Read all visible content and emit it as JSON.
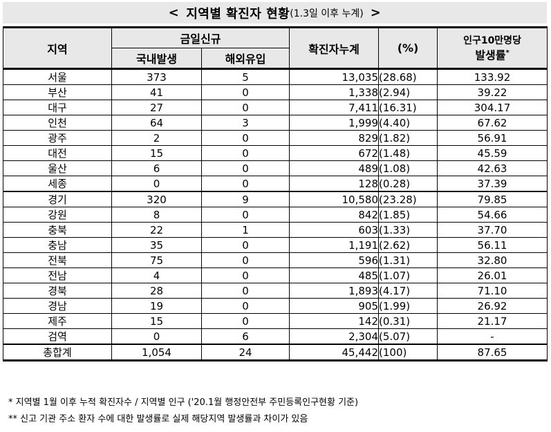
{
  "title": {
    "open": "<",
    "main": "지역별 확진자 현황",
    "sub": "(1.3일 이후 누계)",
    "close": ">"
  },
  "headers": {
    "region": "지역",
    "new_today": "금일신규",
    "domestic": "국내발생",
    "overseas": "해외유입",
    "cumulative": "확진자누계",
    "percent": "(%)",
    "rate_line1": "인구10만명당",
    "rate_line2": "발생률",
    "rate_mark": "*"
  },
  "rows": [
    {
      "region": "서울",
      "domestic": "373",
      "overseas": "5",
      "cumulative": "13,035",
      "percent": "(28.68)",
      "rate": "133.92"
    },
    {
      "region": "부산",
      "domestic": "41",
      "overseas": "0",
      "cumulative": "1,338",
      "percent": "(2.94)",
      "rate": "39.22"
    },
    {
      "region": "대구",
      "domestic": "27",
      "overseas": "0",
      "cumulative": "7,411",
      "percent": "(16.31)",
      "rate": "304.17"
    },
    {
      "region": "인천",
      "domestic": "64",
      "overseas": "3",
      "cumulative": "1,999",
      "percent": "(4.40)",
      "rate": "67.62"
    },
    {
      "region": "광주",
      "domestic": "2",
      "overseas": "0",
      "cumulative": "829",
      "percent": "(1.82)",
      "rate": "56.91"
    },
    {
      "region": "대전",
      "domestic": "15",
      "overseas": "0",
      "cumulative": "672",
      "percent": "(1.48)",
      "rate": "45.59"
    },
    {
      "region": "울산",
      "domestic": "6",
      "overseas": "0",
      "cumulative": "489",
      "percent": "(1.08)",
      "rate": "42.63"
    },
    {
      "region": "세종",
      "domestic": "0",
      "overseas": "0",
      "cumulative": "128",
      "percent": "(0.28)",
      "rate": "37.39"
    },
    {
      "region": "경기",
      "domestic": "320",
      "overseas": "9",
      "cumulative": "10,580",
      "percent": "(23.28)",
      "rate": "79.85"
    },
    {
      "region": "강원",
      "domestic": "8",
      "overseas": "0",
      "cumulative": "842",
      "percent": "(1.85)",
      "rate": "54.66"
    },
    {
      "region": "충북",
      "domestic": "22",
      "overseas": "1",
      "cumulative": "603",
      "percent": "(1.33)",
      "rate": "37.70"
    },
    {
      "region": "충남",
      "domestic": "35",
      "overseas": "0",
      "cumulative": "1,191",
      "percent": "(2.62)",
      "rate": "56.11"
    },
    {
      "region": "전북",
      "domestic": "75",
      "overseas": "0",
      "cumulative": "596",
      "percent": "(1.31)",
      "rate": "32.80"
    },
    {
      "region": "전남",
      "domestic": "4",
      "overseas": "0",
      "cumulative": "485",
      "percent": "(1.07)",
      "rate": "26.01"
    },
    {
      "region": "경북",
      "domestic": "28",
      "overseas": "0",
      "cumulative": "1,893",
      "percent": "(4.17)",
      "rate": "71.10"
    },
    {
      "region": "경남",
      "domestic": "19",
      "overseas": "0",
      "cumulative": "905",
      "percent": "(1.99)",
      "rate": "26.92"
    },
    {
      "region": "제주",
      "domestic": "15",
      "overseas": "0",
      "cumulative": "142",
      "percent": "(0.31)",
      "rate": "21.17"
    },
    {
      "region": "검역",
      "domestic": "0",
      "overseas": "6",
      "cumulative": "2,304",
      "percent": "(5.07)",
      "rate": "-"
    },
    {
      "region": "총합계",
      "domestic": "1,054",
      "overseas": "24",
      "cumulative": "45,442",
      "percent": "(100)",
      "rate": "87.65"
    }
  ],
  "notes": [
    "* 지역별 1월 이후 누적 확진자수 / 지역별 인구 ('20.1월 행정안전부 주민등록인구현황 기준)",
    "** 신고 기관 주소 환자 수에 대한 발생률로 실제 해당지역 발생률과 차이가 있음"
  ]
}
